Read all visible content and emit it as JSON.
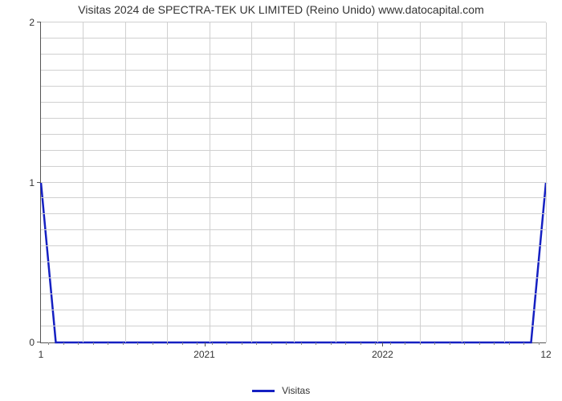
{
  "title": "Visitas 2024 de SPECTRA-TEK UK LIMITED (Reino Unido) www.datocapital.com",
  "chart": {
    "type": "line",
    "background_color": "#ffffff",
    "grid_color": "#d0d0d0",
    "axis_color": "#555555",
    "text_color": "#333333",
    "title_fontsize": 14,
    "label_fontsize": 12,
    "x_domain_start": 2020.0833,
    "x_domain_end": 2022.9167,
    "ylim": [
      0,
      2
    ],
    "y_ticks": [
      0,
      1,
      2
    ],
    "x_major_ticks": [
      2021,
      2022
    ],
    "x_start_label": "1",
    "x_end_label": "12",
    "x_minor_count_per_year": 12,
    "h_grid_lines": 20,
    "v_grid_lines": 12,
    "line_color": "#1520c2",
    "line_width": 2.5,
    "series": {
      "name": "Visitas",
      "points": [
        [
          2020.0833,
          1
        ],
        [
          2020.1667,
          0
        ],
        [
          2022.8333,
          0
        ],
        [
          2022.9167,
          1
        ]
      ]
    }
  },
  "legend": {
    "label": "Visitas",
    "swatch_color": "#1520c2"
  }
}
